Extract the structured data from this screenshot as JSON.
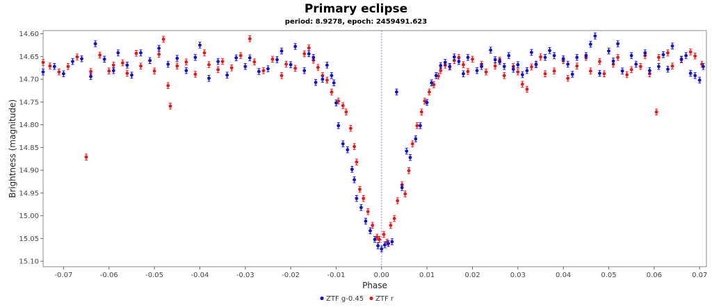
{
  "chart_data": {
    "type": "scatter",
    "title": "Primary eclipse",
    "subtitle": "period: 8.9278, epoch: 2459491.623",
    "xlabel": "Phase",
    "ylabel": "Brightness (magnitude)",
    "xlim": [
      -0.0745,
      0.0715
    ],
    "ylim": [
      14.593,
      15.112
    ],
    "y_inverted": true,
    "grid": false,
    "legend_position": "bottom-center",
    "x_ticks": [
      "-0.07",
      "-0.06",
      "-0.05",
      "-0.04",
      "-0.03",
      "-0.02",
      "-0.01",
      "0.00",
      "0.01",
      "0.02",
      "0.03",
      "0.04",
      "0.05",
      "0.06",
      "0.07"
    ],
    "y_ticks": [
      "14.60",
      "14.65",
      "14.70",
      "14.75",
      "14.80",
      "14.85",
      "14.90",
      "14.95",
      "15.00",
      "15.05",
      "15.10"
    ],
    "reference_line_x": 0.0,
    "series": [
      {
        "name": "ZTF g-0.45",
        "color": "#1010d0",
        "points": [
          [
            -0.0745,
            14.684
          ],
          [
            -0.072,
            14.672
          ],
          [
            -0.07,
            14.688
          ],
          [
            -0.068,
            14.661
          ],
          [
            -0.066,
            14.655
          ],
          [
            -0.064,
            14.694
          ],
          [
            -0.063,
            14.622
          ],
          [
            -0.061,
            14.656
          ],
          [
            -0.059,
            14.681
          ],
          [
            -0.058,
            14.642
          ],
          [
            -0.056,
            14.669
          ],
          [
            -0.055,
            14.691
          ],
          [
            -0.053,
            14.642
          ],
          [
            -0.051,
            14.659
          ],
          [
            -0.049,
            14.632
          ],
          [
            -0.047,
            14.667
          ],
          [
            -0.045,
            14.654
          ],
          [
            -0.043,
            14.681
          ],
          [
            -0.041,
            14.652
          ],
          [
            -0.04,
            14.625
          ],
          [
            -0.038,
            14.698
          ],
          [
            -0.036,
            14.661
          ],
          [
            -0.034,
            14.691
          ],
          [
            -0.032,
            14.653
          ],
          [
            -0.03,
            14.672
          ],
          [
            -0.029,
            14.653
          ],
          [
            -0.027,
            14.683
          ],
          [
            -0.025,
            14.677
          ],
          [
            -0.023,
            14.657
          ],
          [
            -0.022,
            14.638
          ],
          [
            -0.02,
            14.668
          ],
          [
            -0.019,
            14.628
          ],
          [
            -0.017,
            14.681
          ],
          [
            -0.016,
            14.644
          ],
          [
            -0.015,
            14.652
          ],
          [
            -0.0145,
            14.707
          ],
          [
            -0.013,
            14.7
          ],
          [
            -0.012,
            14.669
          ],
          [
            -0.011,
            14.692
          ],
          [
            -0.0105,
            14.708
          ],
          [
            -0.01,
            14.752
          ],
          [
            -0.0095,
            14.802
          ],
          [
            -0.0085,
            14.842
          ],
          [
            -0.0075,
            14.855
          ],
          [
            -0.0065,
            14.898
          ],
          [
            -0.006,
            14.921
          ],
          [
            -0.0055,
            14.962
          ],
          [
            -0.0045,
            14.982
          ],
          [
            -0.0035,
            15.012
          ],
          [
            -0.0025,
            15.033
          ],
          [
            -0.0015,
            15.052
          ],
          [
            -0.0008,
            15.066
          ],
          [
            0.0,
            15.073
          ],
          [
            0.0007,
            15.064
          ],
          [
            0.0015,
            15.061
          ],
          [
            0.0023,
            15.057
          ],
          [
            0.0033,
            14.728
          ],
          [
            0.0045,
            14.938
          ],
          [
            0.0055,
            14.858
          ],
          [
            0.0063,
            14.872
          ],
          [
            0.0075,
            14.831
          ],
          [
            0.0085,
            14.802
          ],
          [
            0.01,
            14.751
          ],
          [
            0.011,
            14.708
          ],
          [
            0.012,
            14.692
          ],
          [
            0.013,
            14.67
          ],
          [
            0.014,
            14.663
          ],
          [
            0.015,
            14.672
          ],
          [
            0.016,
            14.651
          ],
          [
            0.017,
            14.661
          ],
          [
            0.018,
            14.688
          ],
          [
            0.019,
            14.652
          ],
          [
            0.021,
            14.681
          ],
          [
            0.022,
            14.672
          ],
          [
            0.024,
            14.636
          ],
          [
            0.025,
            14.657
          ],
          [
            0.026,
            14.661
          ],
          [
            0.027,
            14.672
          ],
          [
            0.028,
            14.648
          ],
          [
            0.029,
            14.678
          ],
          [
            0.03,
            14.668
          ],
          [
            0.031,
            14.69
          ],
          [
            0.032,
            14.681
          ],
          [
            0.033,
            14.641
          ],
          [
            0.034,
            14.667
          ],
          [
            0.036,
            14.652
          ],
          [
            0.037,
            14.637
          ],
          [
            0.038,
            14.648
          ],
          [
            0.04,
            14.655
          ],
          [
            0.041,
            14.667
          ],
          [
            0.042,
            14.689
          ],
          [
            0.043,
            14.652
          ],
          [
            0.045,
            14.648
          ],
          [
            0.046,
            14.623
          ],
          [
            0.047,
            14.605
          ],
          [
            0.048,
            14.687
          ],
          [
            0.05,
            14.638
          ],
          [
            0.051,
            14.66
          ],
          [
            0.052,
            14.622
          ],
          [
            0.053,
            14.682
          ],
          [
            0.055,
            14.648
          ],
          [
            0.056,
            14.667
          ],
          [
            0.058,
            14.642
          ],
          [
            0.059,
            14.681
          ],
          [
            0.061,
            14.672
          ],
          [
            0.062,
            14.646
          ],
          [
            0.063,
            14.678
          ],
          [
            0.064,
            14.627
          ],
          [
            0.066,
            14.656
          ],
          [
            0.067,
            14.648
          ],
          [
            0.068,
            14.687
          ],
          [
            0.069,
            14.692
          ],
          [
            0.07,
            14.702
          ],
          [
            0.0708,
            14.672
          ]
        ]
      },
      {
        "name": "ZTF r",
        "color": "#e81818",
        "points": [
          [
            -0.0745,
            14.663
          ],
          [
            -0.073,
            14.671
          ],
          [
            -0.071,
            14.684
          ],
          [
            -0.069,
            14.672
          ],
          [
            -0.067,
            14.651
          ],
          [
            -0.065,
            14.871
          ],
          [
            -0.064,
            14.683
          ],
          [
            -0.062,
            14.647
          ],
          [
            -0.06,
            14.682
          ],
          [
            -0.059,
            14.669
          ],
          [
            -0.057,
            14.664
          ],
          [
            -0.056,
            14.687
          ],
          [
            -0.054,
            14.643
          ],
          [
            -0.053,
            14.671
          ],
          [
            -0.051,
            14.659
          ],
          [
            -0.05,
            14.682
          ],
          [
            -0.049,
            14.645
          ],
          [
            -0.048,
            14.612
          ],
          [
            -0.047,
            14.714
          ],
          [
            -0.0465,
            14.759
          ],
          [
            -0.045,
            14.671
          ],
          [
            -0.043,
            14.662
          ],
          [
            -0.041,
            14.689
          ],
          [
            -0.039,
            14.642
          ],
          [
            -0.038,
            14.668
          ],
          [
            -0.036,
            14.679
          ],
          [
            -0.035,
            14.661
          ],
          [
            -0.033,
            14.675
          ],
          [
            -0.031,
            14.648
          ],
          [
            -0.029,
            14.611
          ],
          [
            -0.028,
            14.662
          ],
          [
            -0.026,
            14.681
          ],
          [
            -0.024,
            14.656
          ],
          [
            -0.022,
            14.692
          ],
          [
            -0.021,
            14.667
          ],
          [
            -0.019,
            14.676
          ],
          [
            -0.017,
            14.644
          ],
          [
            -0.016,
            14.631
          ],
          [
            -0.015,
            14.658
          ],
          [
            -0.014,
            14.674
          ],
          [
            -0.013,
            14.692
          ],
          [
            -0.012,
            14.702
          ],
          [
            -0.011,
            14.728
          ],
          [
            -0.0095,
            14.748
          ],
          [
            -0.0085,
            14.758
          ],
          [
            -0.0078,
            14.772
          ],
          [
            -0.0068,
            14.808
          ],
          [
            -0.006,
            14.848
          ],
          [
            -0.0055,
            14.882
          ],
          [
            -0.0048,
            14.942
          ],
          [
            -0.004,
            14.962
          ],
          [
            -0.003,
            14.991
          ],
          [
            -0.002,
            15.021
          ],
          [
            -0.001,
            15.047
          ],
          [
            -0.0005,
            15.052
          ],
          [
            0.0005,
            15.041
          ],
          [
            0.0012,
            15.058
          ],
          [
            0.002,
            15.021
          ],
          [
            0.0028,
            15.006
          ],
          [
            0.0035,
            14.967
          ],
          [
            0.0045,
            14.932
          ],
          [
            0.0052,
            14.952
          ],
          [
            0.006,
            14.901
          ],
          [
            0.0068,
            14.842
          ],
          [
            0.0078,
            14.802
          ],
          [
            0.0088,
            14.772
          ],
          [
            0.0095,
            14.748
          ],
          [
            0.0105,
            14.728
          ],
          [
            0.0115,
            14.712
          ],
          [
            0.0125,
            14.693
          ],
          [
            0.013,
            14.681
          ],
          [
            0.014,
            14.669
          ],
          [
            0.015,
            14.673
          ],
          [
            0.016,
            14.659
          ],
          [
            0.017,
            14.652
          ],
          [
            0.018,
            14.668
          ],
          [
            0.019,
            14.683
          ],
          [
            0.02,
            14.656
          ],
          [
            0.022,
            14.667
          ],
          [
            0.023,
            14.684
          ],
          [
            0.025,
            14.671
          ],
          [
            0.026,
            14.658
          ],
          [
            0.027,
            14.692
          ],
          [
            0.029,
            14.672
          ],
          [
            0.03,
            14.684
          ],
          [
            0.031,
            14.711
          ],
          [
            0.032,
            14.722
          ],
          [
            0.033,
            14.673
          ],
          [
            0.034,
            14.668
          ],
          [
            0.035,
            14.651
          ],
          [
            0.036,
            14.688
          ],
          [
            0.038,
            14.682
          ],
          [
            0.04,
            14.659
          ],
          [
            0.041,
            14.698
          ],
          [
            0.043,
            14.671
          ],
          [
            0.045,
            14.652
          ],
          [
            0.046,
            14.682
          ],
          [
            0.048,
            14.661
          ],
          [
            0.049,
            14.688
          ],
          [
            0.051,
            14.667
          ],
          [
            0.052,
            14.652
          ],
          [
            0.054,
            14.69
          ],
          [
            0.055,
            14.679
          ],
          [
            0.057,
            14.672
          ],
          [
            0.058,
            14.648
          ],
          [
            0.059,
            14.688
          ],
          [
            0.0605,
            14.772
          ],
          [
            0.061,
            14.652
          ],
          [
            0.063,
            14.642
          ],
          [
            0.064,
            14.671
          ],
          [
            0.066,
            14.657
          ],
          [
            0.068,
            14.64
          ],
          [
            0.069,
            14.649
          ],
          [
            0.0705,
            14.667
          ]
        ]
      }
    ]
  }
}
